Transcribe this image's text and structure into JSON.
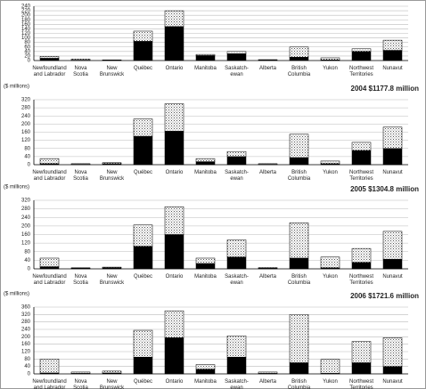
{
  "chart_data": [
    {
      "type": "stacked-bar",
      "categories": [
        "Newfoundland\nand Labrador",
        "Nova\nScotia",
        "New\nBrunswick",
        "Québec",
        "Ontario",
        "Manitoba",
        "Saskatch-\newan",
        "Alberta",
        "British\nColumbia",
        "Yukon",
        "Northwest\nTerritories",
        "Nunavut"
      ],
      "series": [
        {
          "color": "#000000",
          "values": [
            10,
            2,
            2,
            85,
            150,
            22,
            30,
            2,
            15,
            3,
            40,
            45
          ]
        },
        {
          "color": "pattern",
          "values": [
            8,
            5,
            1,
            45,
            70,
            5,
            10,
            2,
            45,
            9,
            12,
            45
          ]
        }
      ],
      "ylim": [
        0,
        240
      ],
      "yticks": [
        0,
        20,
        40,
        60,
        80,
        100,
        120,
        140,
        160,
        180,
        200,
        220,
        240
      ],
      "grid": true
    },
    {
      "type": "stacked-bar",
      "title": "2004  $1177.8 million",
      "ylabel": "($ millions)",
      "categories": [
        "Newfoundland\nand Labrador",
        "Nova\nScotia",
        "New\nBrunswick",
        "Québec",
        "Ontario",
        "Manitoba",
        "Saskatch-\newan",
        "Alberta",
        "British\nColumbia",
        "Yukon",
        "Northwest\nTerritories",
        "Nunavut"
      ],
      "series": [
        {
          "color": "#000000",
          "values": [
            5,
            2,
            5,
            140,
            165,
            15,
            40,
            2,
            35,
            5,
            70,
            80
          ]
        },
        {
          "color": "pattern",
          "values": [
            25,
            3,
            5,
            85,
            135,
            15,
            25,
            3,
            115,
            13,
            40,
            105
          ]
        }
      ],
      "ylim": [
        0,
        320
      ],
      "yticks": [
        0,
        40,
        80,
        120,
        160,
        200,
        240,
        280,
        320
      ],
      "grid": true
    },
    {
      "type": "stacked-bar",
      "title": "2005  $1304.8 million",
      "ylabel": "($ millions)",
      "categories": [
        "Newfoundland\nand Labrador",
        "Nova\nScotia",
        "New\nBrunswick",
        "Québec",
        "Ontario",
        "Manitoba",
        "Saskatch-\newan",
        "Alberta",
        "British\nColumbia",
        "Yukon",
        "Northwest\nTerritories",
        "Nunavut"
      ],
      "series": [
        {
          "color": "#000000",
          "values": [
            10,
            3,
            5,
            105,
            160,
            25,
            55,
            3,
            50,
            5,
            30,
            45
          ]
        },
        {
          "color": "pattern",
          "values": [
            40,
            2,
            3,
            100,
            130,
            25,
            80,
            3,
            165,
            50,
            65,
            130
          ]
        }
      ],
      "ylim": [
        0,
        320
      ],
      "yticks": [
        0,
        40,
        80,
        120,
        160,
        200,
        240,
        280,
        320
      ],
      "grid": true
    },
    {
      "type": "stacked-bar",
      "title": "2006  $1721.6 million",
      "ylabel": "($ millions)",
      "categories": [
        "Newfoundland\nand Labrador",
        "Nova\nScotia",
        "New\nBrunswick",
        "Québec",
        "Ontario",
        "Manitoba",
        "Saskatch-\newan",
        "Alberta",
        "British\nColumbia",
        "Yukon",
        "Northwest\nTerritories",
        "Nunavut"
      ],
      "series": [
        {
          "color": "#000000",
          "values": [
            5,
            3,
            5,
            90,
            195,
            25,
            90,
            3,
            60,
            3,
            60,
            40
          ]
        },
        {
          "color": "pattern",
          "values": [
            75,
            7,
            10,
            145,
            145,
            25,
            115,
            7,
            260,
            75,
            115,
            155
          ]
        }
      ],
      "ylim": [
        0,
        360
      ],
      "yticks": [
        0,
        40,
        80,
        120,
        160,
        200,
        240,
        280,
        320,
        360
      ],
      "grid": true
    }
  ]
}
